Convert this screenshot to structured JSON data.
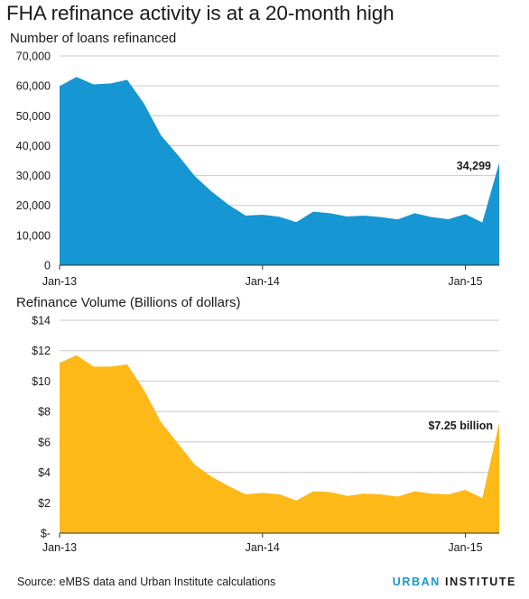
{
  "title": "FHA refinance activity is at a 20-month high",
  "source": "Source: eMBS data and Urban Institute calculations",
  "brand": {
    "part1": "URBAN",
    "part2": "INSTITUTE"
  },
  "colors": {
    "loans": "#1696d2",
    "volume": "#fdb918",
    "grid": "#c8c8c8"
  },
  "chart_data": [
    {
      "type": "area",
      "title": "Number of loans refinanced",
      "xlabel": "",
      "ylabel": "",
      "ylim": [
        0,
        70000
      ],
      "yticks": [
        0,
        10000,
        20000,
        30000,
        40000,
        50000,
        60000,
        70000
      ],
      "ytick_labels": [
        "0",
        "10,000",
        "20,000",
        "30,000",
        "40,000",
        "50,000",
        "60,000",
        "70,000"
      ],
      "xtick_labels": [
        "Jan-13",
        "Jan-14",
        "Jan-15"
      ],
      "x": [
        "2013-01",
        "2013-02",
        "2013-03",
        "2013-04",
        "2013-05",
        "2013-06",
        "2013-07",
        "2013-08",
        "2013-09",
        "2013-10",
        "2013-11",
        "2013-12",
        "2014-01",
        "2014-02",
        "2014-03",
        "2014-04",
        "2014-05",
        "2014-06",
        "2014-07",
        "2014-08",
        "2014-09",
        "2014-10",
        "2014-11",
        "2014-12",
        "2015-01",
        "2015-02",
        "2015-03"
      ],
      "series": [
        {
          "values": [
            59900,
            63000,
            60500,
            60800,
            62000,
            54000,
            43400,
            36800,
            29800,
            24600,
            20200,
            16600,
            16900,
            16200,
            14400,
            17900,
            17400,
            16300,
            16600,
            16100,
            15300,
            17400,
            16100,
            15400,
            17100,
            14300,
            34299
          ]
        }
      ],
      "annotation": {
        "label": "34,299"
      },
      "grid": true
    },
    {
      "type": "area",
      "title": "Refinance Volume (Billions of dollars)",
      "xlabel": "",
      "ylabel": "",
      "ylim": [
        0,
        14
      ],
      "yticks": [
        0,
        2,
        4,
        6,
        8,
        10,
        12,
        14
      ],
      "ytick_labels": [
        "$-",
        "$2",
        "$4",
        "$6",
        "$8",
        "$10",
        "$12",
        "$14"
      ],
      "xtick_labels": [
        "Jan-13",
        "Jan-14",
        "Jan-15"
      ],
      "x": [
        "2013-01",
        "2013-02",
        "2013-03",
        "2013-04",
        "2013-05",
        "2013-06",
        "2013-07",
        "2013-08",
        "2013-09",
        "2013-10",
        "2013-11",
        "2013-12",
        "2014-01",
        "2014-02",
        "2014-03",
        "2014-04",
        "2014-05",
        "2014-06",
        "2014-07",
        "2014-08",
        "2014-09",
        "2014-10",
        "2014-11",
        "2014-12",
        "2015-01",
        "2015-02",
        "2015-03"
      ],
      "series": [
        {
          "values": [
            11.2,
            11.7,
            10.95,
            10.95,
            11.1,
            9.4,
            7.3,
            5.9,
            4.5,
            3.7,
            3.1,
            2.55,
            2.65,
            2.55,
            2.15,
            2.75,
            2.7,
            2.45,
            2.6,
            2.55,
            2.4,
            2.75,
            2.6,
            2.55,
            2.85,
            2.3,
            7.25
          ]
        }
      ],
      "annotation": {
        "label": "$7.25 billion"
      },
      "grid": true
    }
  ]
}
